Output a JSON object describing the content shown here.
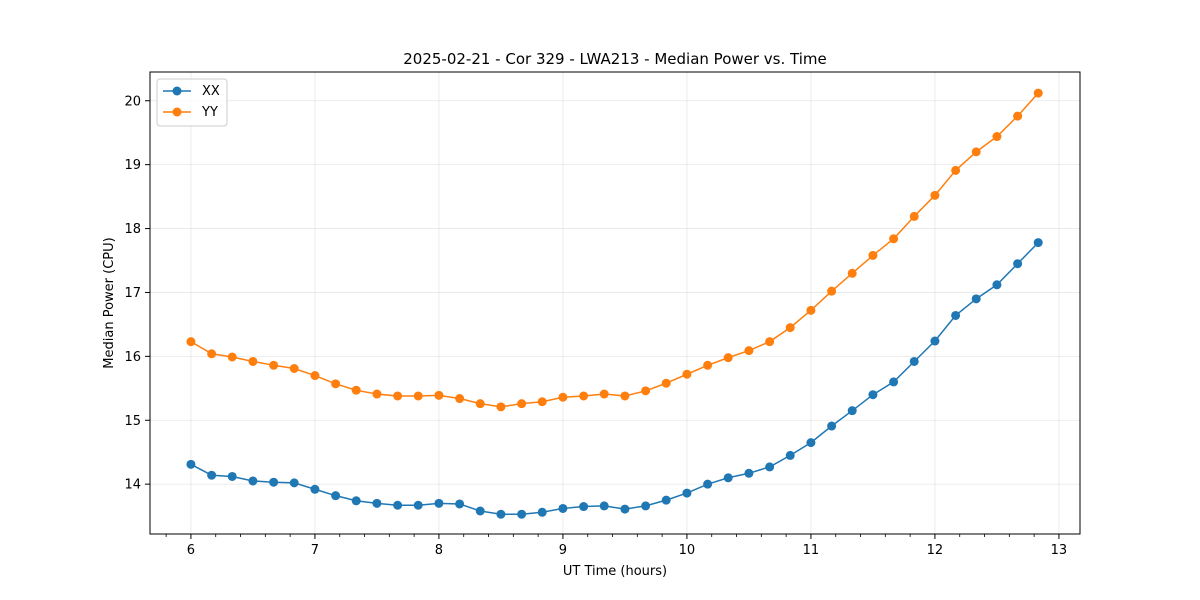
{
  "chart_data": {
    "type": "line",
    "title": "2025-02-21 - Cor 329 - LWA213 - Median Power vs. Time",
    "xlabel": "UT Time (hours)",
    "ylabel": "Median Power (CPU)",
    "xlim": [
      5.67,
      13.17
    ],
    "ylim": [
      13.22,
      20.45
    ],
    "x_ticks": [
      6,
      7,
      8,
      9,
      10,
      11,
      12,
      13
    ],
    "y_ticks": [
      14,
      15,
      16,
      17,
      18,
      19,
      20
    ],
    "grid": true,
    "legend_position": "top-left",
    "x": [
      6.0,
      6.167,
      6.333,
      6.5,
      6.667,
      6.833,
      7.0,
      7.167,
      7.333,
      7.5,
      7.667,
      7.833,
      8.0,
      8.167,
      8.333,
      8.5,
      8.667,
      8.833,
      9.0,
      9.167,
      9.333,
      9.5,
      9.667,
      9.833,
      10.0,
      10.167,
      10.333,
      10.5,
      10.667,
      10.833,
      11.0,
      11.167,
      11.333,
      11.5,
      11.667,
      11.833,
      12.0,
      12.167,
      12.333,
      12.5,
      12.667,
      12.833
    ],
    "series": [
      {
        "name": "XX",
        "color": "#1f77b4",
        "values": [
          14.31,
          14.14,
          14.12,
          14.05,
          14.03,
          14.02,
          13.92,
          13.82,
          13.74,
          13.7,
          13.67,
          13.67,
          13.7,
          13.69,
          13.58,
          13.53,
          13.53,
          13.56,
          13.62,
          13.65,
          13.66,
          13.61,
          13.66,
          13.75,
          13.86,
          14.0,
          14.1,
          14.17,
          14.27,
          14.45,
          14.65,
          14.91,
          15.15,
          15.4,
          15.6,
          15.92,
          16.24,
          16.64,
          16.9,
          17.12,
          17.45,
          17.78
        ]
      },
      {
        "name": "YY",
        "color": "#ff7f0e",
        "values": [
          16.23,
          16.04,
          15.99,
          15.92,
          15.86,
          15.81,
          15.7,
          15.57,
          15.47,
          15.41,
          15.38,
          15.38,
          15.39,
          15.34,
          15.26,
          15.21,
          15.26,
          15.29,
          15.36,
          15.38,
          15.41,
          15.38,
          15.46,
          15.58,
          15.72,
          15.86,
          15.98,
          16.09,
          16.23,
          16.45,
          16.72,
          17.02,
          17.3,
          17.58,
          17.84,
          18.19,
          18.52,
          18.91,
          19.2,
          19.44,
          19.76,
          20.12
        ]
      }
    ]
  }
}
